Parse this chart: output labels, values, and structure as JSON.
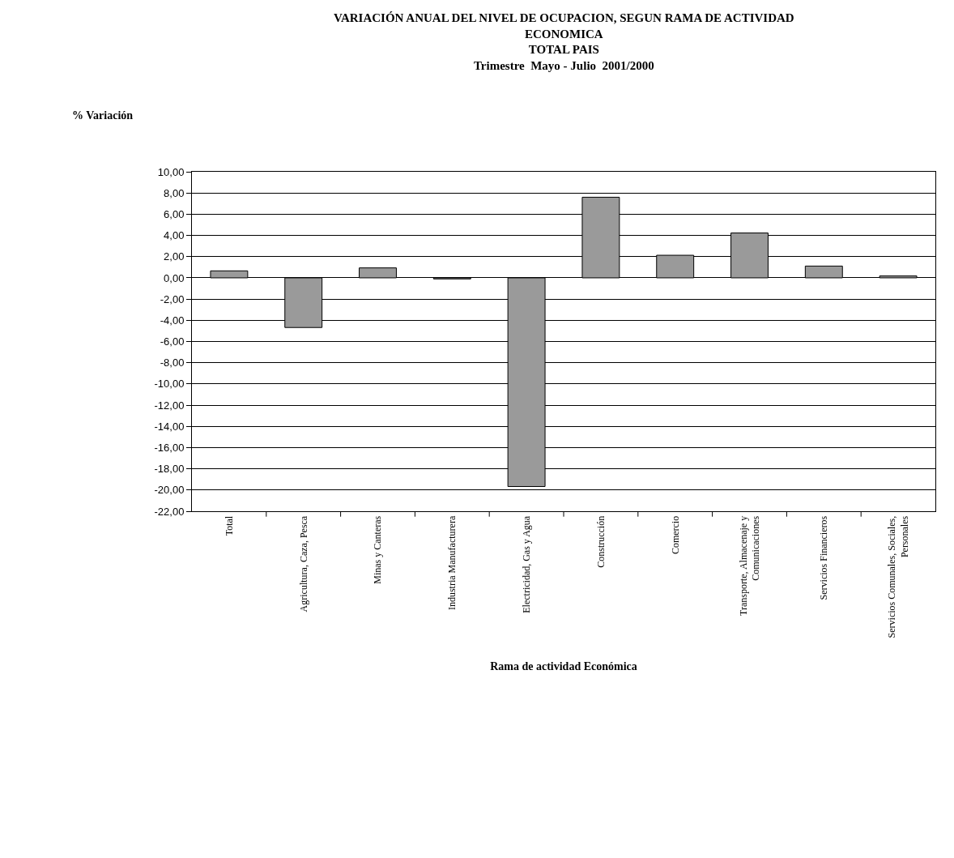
{
  "chart_data": {
    "type": "bar",
    "title": "VARIACIÓN ANUAL DEL NIVEL DE OCUPACION, SEGUN RAMA DE ACTIVIDAD ECONOMICA",
    "subtitle": "TOTAL PAIS\nTrimestre  Mayo - Julio  2001/2000",
    "ylabel": "% Variación",
    "xlabel": "Rama de actividad Económica",
    "categories": [
      "Total",
      "Agricultura, Caza, Pesca",
      "Minas y Canteras",
      "Industria Manufacturera",
      "Electricidad, Gas y Agua",
      "Construcción",
      "Comercio",
      "Transporte, Almacenaje y Comunicaciones",
      "Servicios Financieros",
      "Servicios Comunales, Sociales, Personales"
    ],
    "values": [
      0.66,
      -4.68,
      0.94,
      -0.1,
      -19.67,
      7.6,
      2.13,
      4.23,
      1.11,
      0.18
    ],
    "color": "#9a9a9a",
    "ylim": [
      -22,
      10
    ],
    "yticks": [
      {
        "value": 10,
        "label": "10,00"
      },
      {
        "value": 8,
        "label": "8,00"
      },
      {
        "value": 6,
        "label": "6,00"
      },
      {
        "value": 4,
        "label": "4,00"
      },
      {
        "value": 2,
        "label": "2,00"
      },
      {
        "value": 0,
        "label": "0,00"
      },
      {
        "value": -2,
        "label": "-2,00"
      },
      {
        "value": -4,
        "label": "-4,00"
      },
      {
        "value": -6,
        "label": "-6,00"
      },
      {
        "value": -8,
        "label": "-8,00"
      },
      {
        "value": -10,
        "label": "-10,00"
      },
      {
        "value": -12,
        "label": "-12,00"
      },
      {
        "value": -14,
        "label": "-14,00"
      },
      {
        "value": -16,
        "label": "-16,00"
      },
      {
        "value": -18,
        "label": "-18,00"
      },
      {
        "value": -20,
        "label": "-20,00"
      },
      {
        "value": -22,
        "label": "-22,00"
      }
    ],
    "grid": "y",
    "legend": false
  }
}
